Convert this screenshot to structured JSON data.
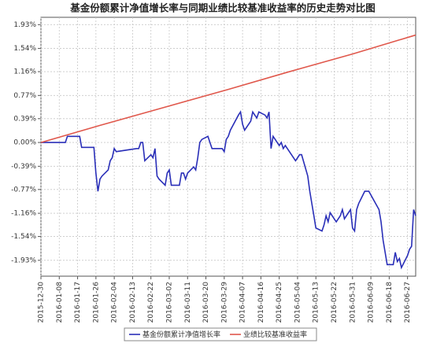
{
  "chart_data": {
    "type": "line",
    "title": "基金份额累计净值增长率与同期业绩比较基准收益率的历史走势对比图",
    "xlim": [
      "2015-12-30",
      "2016-07-01"
    ],
    "xticks": [
      "2015-12-30",
      "2016-01-08",
      "2016-01-17",
      "2016-01-26",
      "2016-02-04",
      "2016-02-13",
      "2016-02-22",
      "2016-03-02",
      "2016-03-11",
      "2016-03-20",
      "2016-03-29",
      "2016-04-07",
      "2016-04-16",
      "2016-04-25",
      "2016-05-04",
      "2016-05-13",
      "2016-05-22",
      "2016-05-31",
      "2016-06-09",
      "2016-06-18",
      "2016-06-27"
    ],
    "ylim": [
      -2.19,
      2.05
    ],
    "yticks": [
      {
        "value": 1.93,
        "label": "1.93%"
      },
      {
        "value": 1.54,
        "label": "1.54%"
      },
      {
        "value": 1.16,
        "label": "1.16%"
      },
      {
        "value": 0.77,
        "label": "0.77%"
      },
      {
        "value": 0.39,
        "label": "0.39%"
      },
      {
        "value": 0,
        "label": "0.00%"
      },
      {
        "value": -0.39,
        "label": "-0.39%"
      },
      {
        "value": -0.77,
        "label": "-0.77%"
      },
      {
        "value": -1.16,
        "label": "-1.16%"
      },
      {
        "value": -1.54,
        "label": "-1.54%"
      },
      {
        "value": -1.93,
        "label": "-1.93%"
      }
    ],
    "grid": true,
    "legend": "bottom",
    "series": [
      {
        "name": "基金份额累计净值增长率",
        "color": "#2a2fb8",
        "x": [
          "2015-12-30",
          "2016-01-08",
          "2016-01-11",
          "2016-01-12",
          "2016-01-18",
          "2016-01-19",
          "2016-01-25",
          "2016-01-26",
          "2016-01-27",
          "2016-01-28",
          "2016-01-29",
          "2016-02-01",
          "2016-02-02",
          "2016-02-03",
          "2016-02-04",
          "2016-02-05",
          "2016-02-15",
          "2016-02-16",
          "2016-02-17",
          "2016-02-18",
          "2016-02-19",
          "2016-02-22",
          "2016-02-23",
          "2016-02-24",
          "2016-02-25",
          "2016-02-26",
          "2016-02-29",
          "2016-03-01",
          "2016-03-02",
          "2016-03-03",
          "2016-03-04",
          "2016-03-07",
          "2016-03-08",
          "2016-03-09",
          "2016-03-10",
          "2016-03-11",
          "2016-03-14",
          "2016-03-15",
          "2016-03-16",
          "2016-03-17",
          "2016-03-18",
          "2016-03-21",
          "2016-03-22",
          "2016-03-23",
          "2016-03-28",
          "2016-03-29",
          "2016-03-30",
          "2016-03-31",
          "2016-04-01",
          "2016-04-05",
          "2016-04-06",
          "2016-04-07",
          "2016-04-08",
          "2016-04-11",
          "2016-04-12",
          "2016-04-13",
          "2016-04-14",
          "2016-04-15",
          "2016-04-18",
          "2016-04-19",
          "2016-04-20",
          "2016-04-21",
          "2016-04-22",
          "2016-04-25",
          "2016-04-26",
          "2016-04-27",
          "2016-04-28",
          "2016-04-29",
          "2016-05-03",
          "2016-05-04",
          "2016-05-05",
          "2016-05-06",
          "2016-05-09",
          "2016-05-10",
          "2016-05-11",
          "2016-05-12",
          "2016-05-13",
          "2016-05-16",
          "2016-05-17",
          "2016-05-18",
          "2016-05-19",
          "2016-05-20",
          "2016-05-23",
          "2016-05-24",
          "2016-05-25",
          "2016-05-26",
          "2016-05-27",
          "2016-05-30",
          "2016-05-31",
          "2016-06-01",
          "2016-06-02",
          "2016-06-03",
          "2016-06-06",
          "2016-06-07",
          "2016-06-08",
          "2016-06-13",
          "2016-06-14",
          "2016-06-15",
          "2016-06-16",
          "2016-06-17",
          "2016-06-20",
          "2016-06-21",
          "2016-06-22",
          "2016-06-23",
          "2016-06-24",
          "2016-06-27",
          "2016-06-28",
          "2016-06-29",
          "2016-06-30",
          "2016-07-01"
        ],
        "values": [
          0,
          0,
          0,
          0.1,
          0.1,
          -0.08,
          -0.08,
          -0.5,
          -0.8,
          -0.6,
          -0.55,
          -0.45,
          -0.3,
          -0.25,
          -0.1,
          -0.15,
          -0.1,
          -0.1,
          0,
          0,
          -0.3,
          -0.2,
          -0.25,
          -0.1,
          -0.55,
          -0.6,
          -0.7,
          -0.5,
          -0.45,
          -0.7,
          -0.7,
          -0.7,
          -0.5,
          -0.5,
          -0.6,
          -0.5,
          -0.4,
          -0.45,
          -0.25,
          0,
          0.05,
          0.1,
          0,
          -0.1,
          -0.1,
          -0.15,
          0.05,
          0.1,
          0.2,
          0.45,
          0.5,
          0.3,
          0.2,
          0.35,
          0.5,
          0.45,
          0.4,
          0.5,
          0.45,
          0.4,
          0.5,
          -0.1,
          0.1,
          -0.05,
          0,
          -0.1,
          -0.05,
          -0.1,
          -0.3,
          -0.25,
          -0.2,
          -0.2,
          -0.55,
          -0.8,
          -1.0,
          -1.2,
          -1.4,
          -1.45,
          -1.35,
          -1.2,
          -1.3,
          -1.15,
          -1.3,
          -1.25,
          -1.2,
          -1.1,
          -1.25,
          -1.1,
          -1.4,
          -1.45,
          -1.1,
          -1.0,
          -0.8,
          -0.8,
          -0.8,
          -1.1,
          -1.3,
          -1.6,
          -1.8,
          -2.0,
          -2.0,
          -1.8,
          -1.95,
          -1.9,
          -2.05,
          -1.85,
          -1.75,
          -1.7,
          -1.1,
          -1.2
        ]
      },
      {
        "name": "业绩比较基准收益率",
        "color": "#e0574b",
        "x": [
          "2015-12-30",
          "2016-01-29",
          "2016-02-29",
          "2016-03-31",
          "2016-04-29",
          "2016-05-31",
          "2016-06-30",
          "2016-07-01"
        ],
        "values": [
          0,
          0.29,
          0.58,
          0.87,
          1.15,
          1.45,
          1.75,
          1.76
        ]
      }
    ]
  }
}
